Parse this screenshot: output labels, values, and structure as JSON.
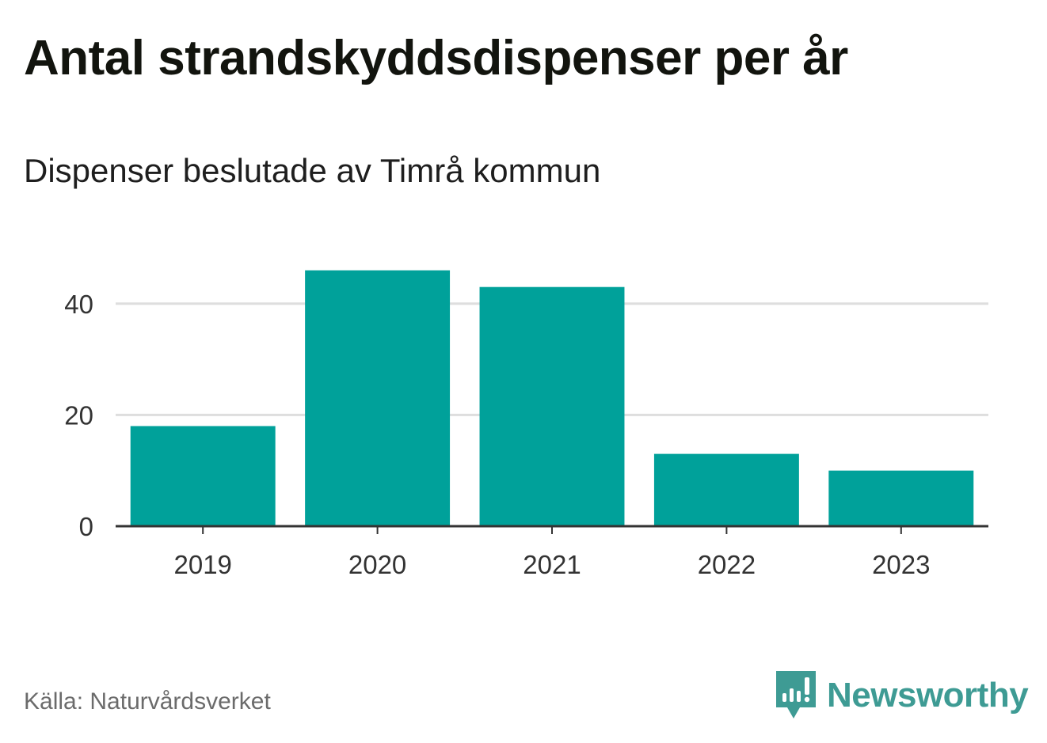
{
  "header": {
    "title": "Antal strandskyddsdispenser per år",
    "subtitle": "Dispenser beslutade av Timrå kommun"
  },
  "footer": {
    "source": "Källa: Naturvårdsverket",
    "brand": "Newsworthy",
    "brand_icon": "newsworthy-logo-icon"
  },
  "colors": {
    "bar": "#00a19a",
    "grid": "#dedede",
    "axis": "#333333",
    "brand": "#3e9b94"
  },
  "chart_data": {
    "type": "bar",
    "title": "Antal strandskyddsdispenser per år",
    "subtitle": "Dispenser beslutade av Timrå kommun",
    "categories": [
      "2019",
      "2020",
      "2021",
      "2022",
      "2023"
    ],
    "values": [
      18,
      46,
      43,
      13,
      10
    ],
    "ylim": [
      0,
      50
    ],
    "yticks": [
      0,
      20,
      40
    ],
    "xlabel": "",
    "ylabel": "",
    "grid": true,
    "legend": "none"
  }
}
